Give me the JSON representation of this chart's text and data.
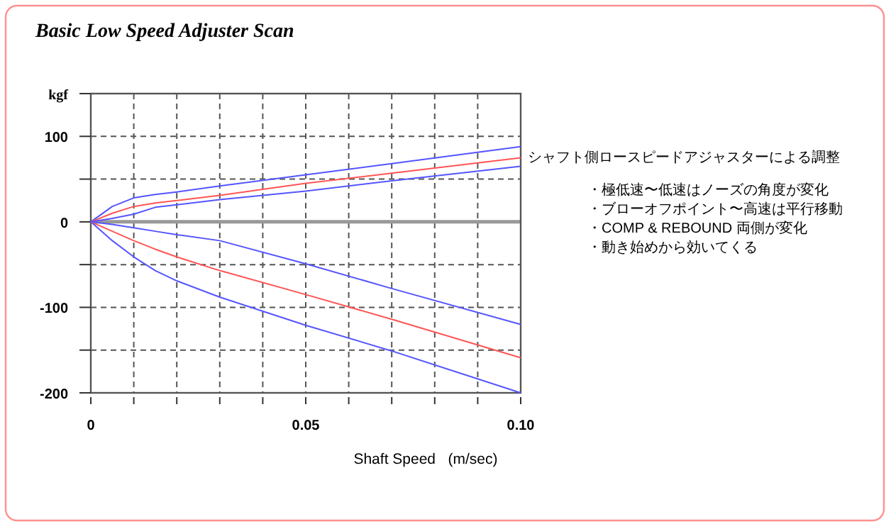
{
  "chart_data": {
    "type": "line",
    "title": "Basic Low Speed Adjuster Scan",
    "xlabel": "Shaft Speed   (m/sec)",
    "ylabel": "kgf",
    "annotations": [
      "シャフト側ロースピードアジャスターによる調整",
      "・極低速〜低速はノーズの角度が変化",
      "・ブローオフポイント〜高速は平行移動",
      "・COMP & REBOUND 両側が変化",
      "・動き始めから効いてくる"
    ],
    "x": [
      0,
      0.005,
      0.01,
      0.015,
      0.02,
      0.03,
      0.05,
      0.07,
      0.1
    ],
    "series": [
      {
        "color": "#5555ff",
        "values": [
          0,
          18,
          28,
          32,
          35,
          42,
          55,
          68,
          88
        ]
      },
      {
        "color": "#ff5555",
        "values": [
          0,
          10,
          18,
          22,
          25,
          31,
          45,
          57,
          75
        ]
      },
      {
        "color": "#5555ff",
        "values": [
          0,
          4,
          9,
          17,
          20,
          26,
          36,
          48,
          65
        ]
      },
      {
        "color": "#5555ff",
        "values": [
          0,
          -3,
          -7,
          -11,
          -15,
          -22,
          -49,
          -78,
          -120
        ]
      },
      {
        "color": "#ff5555",
        "values": [
          0,
          -11,
          -22,
          -32,
          -41,
          -57,
          -85,
          -114,
          -159
        ]
      },
      {
        "color": "#5555ff",
        "values": [
          0,
          -22,
          -41,
          -57,
          -69,
          -88,
          -121,
          -151,
          -200
        ]
      }
    ],
    "xlim": [
      0,
      0.1
    ],
    "ylim": [
      -200,
      150
    ],
    "xticks": [
      0,
      {
        "value": 0.01,
        "label": null
      },
      {
        "value": 0.02,
        "label": null
      },
      {
        "value": 0.03,
        "label": null
      },
      {
        "value": 0.04,
        "label": null
      },
      0.05,
      {
        "value": 0.06,
        "label": null
      },
      {
        "value": 0.07,
        "label": null
      },
      {
        "value": 0.08,
        "label": null
      },
      {
        "value": 0.09,
        "label": null
      },
      {
        "value": 0.1,
        "label": "0.10"
      }
    ],
    "yticks": [
      -200,
      {
        "value": -150,
        "label": null
      },
      -100,
      {
        "value": -50,
        "label": null
      },
      0,
      {
        "value": 50,
        "label": null
      },
      100,
      {
        "value": 150,
        "label": null
      }
    ],
    "grid": true,
    "line_style": "solid"
  }
}
